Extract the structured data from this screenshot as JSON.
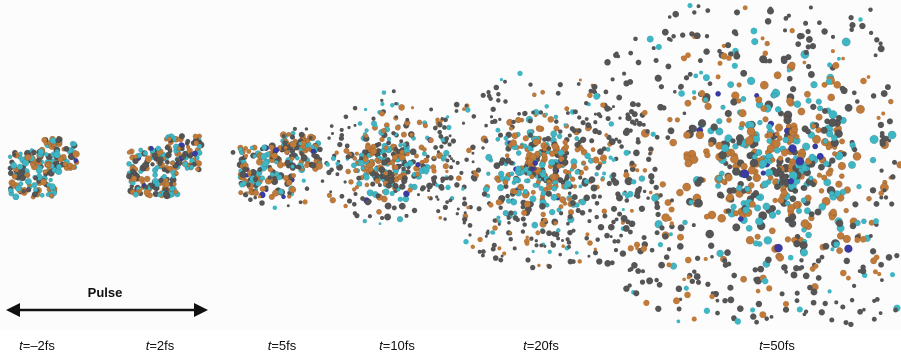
{
  "pulse": {
    "label": "Pulse"
  },
  "frames": [
    {
      "id": "m2",
      "var": "t",
      "rest": "=–2fs"
    },
    {
      "id": "p2",
      "var": "t",
      "rest": "=2fs"
    },
    {
      "id": "p5",
      "var": "t",
      "rest": "=5fs"
    },
    {
      "id": "p10",
      "var": "t",
      "rest": "=10fs"
    },
    {
      "id": "p20",
      "var": "t",
      "rest": "=20fs"
    },
    {
      "id": "p50",
      "var": "t",
      "rest": "=50fs"
    }
  ],
  "colors": {
    "carbon": "#555555",
    "oxygen": "#c07a3a",
    "hydrogen": "#3fb6c4",
    "nitrogen": "#3a3aa6",
    "background": "#fcfcfc"
  }
}
